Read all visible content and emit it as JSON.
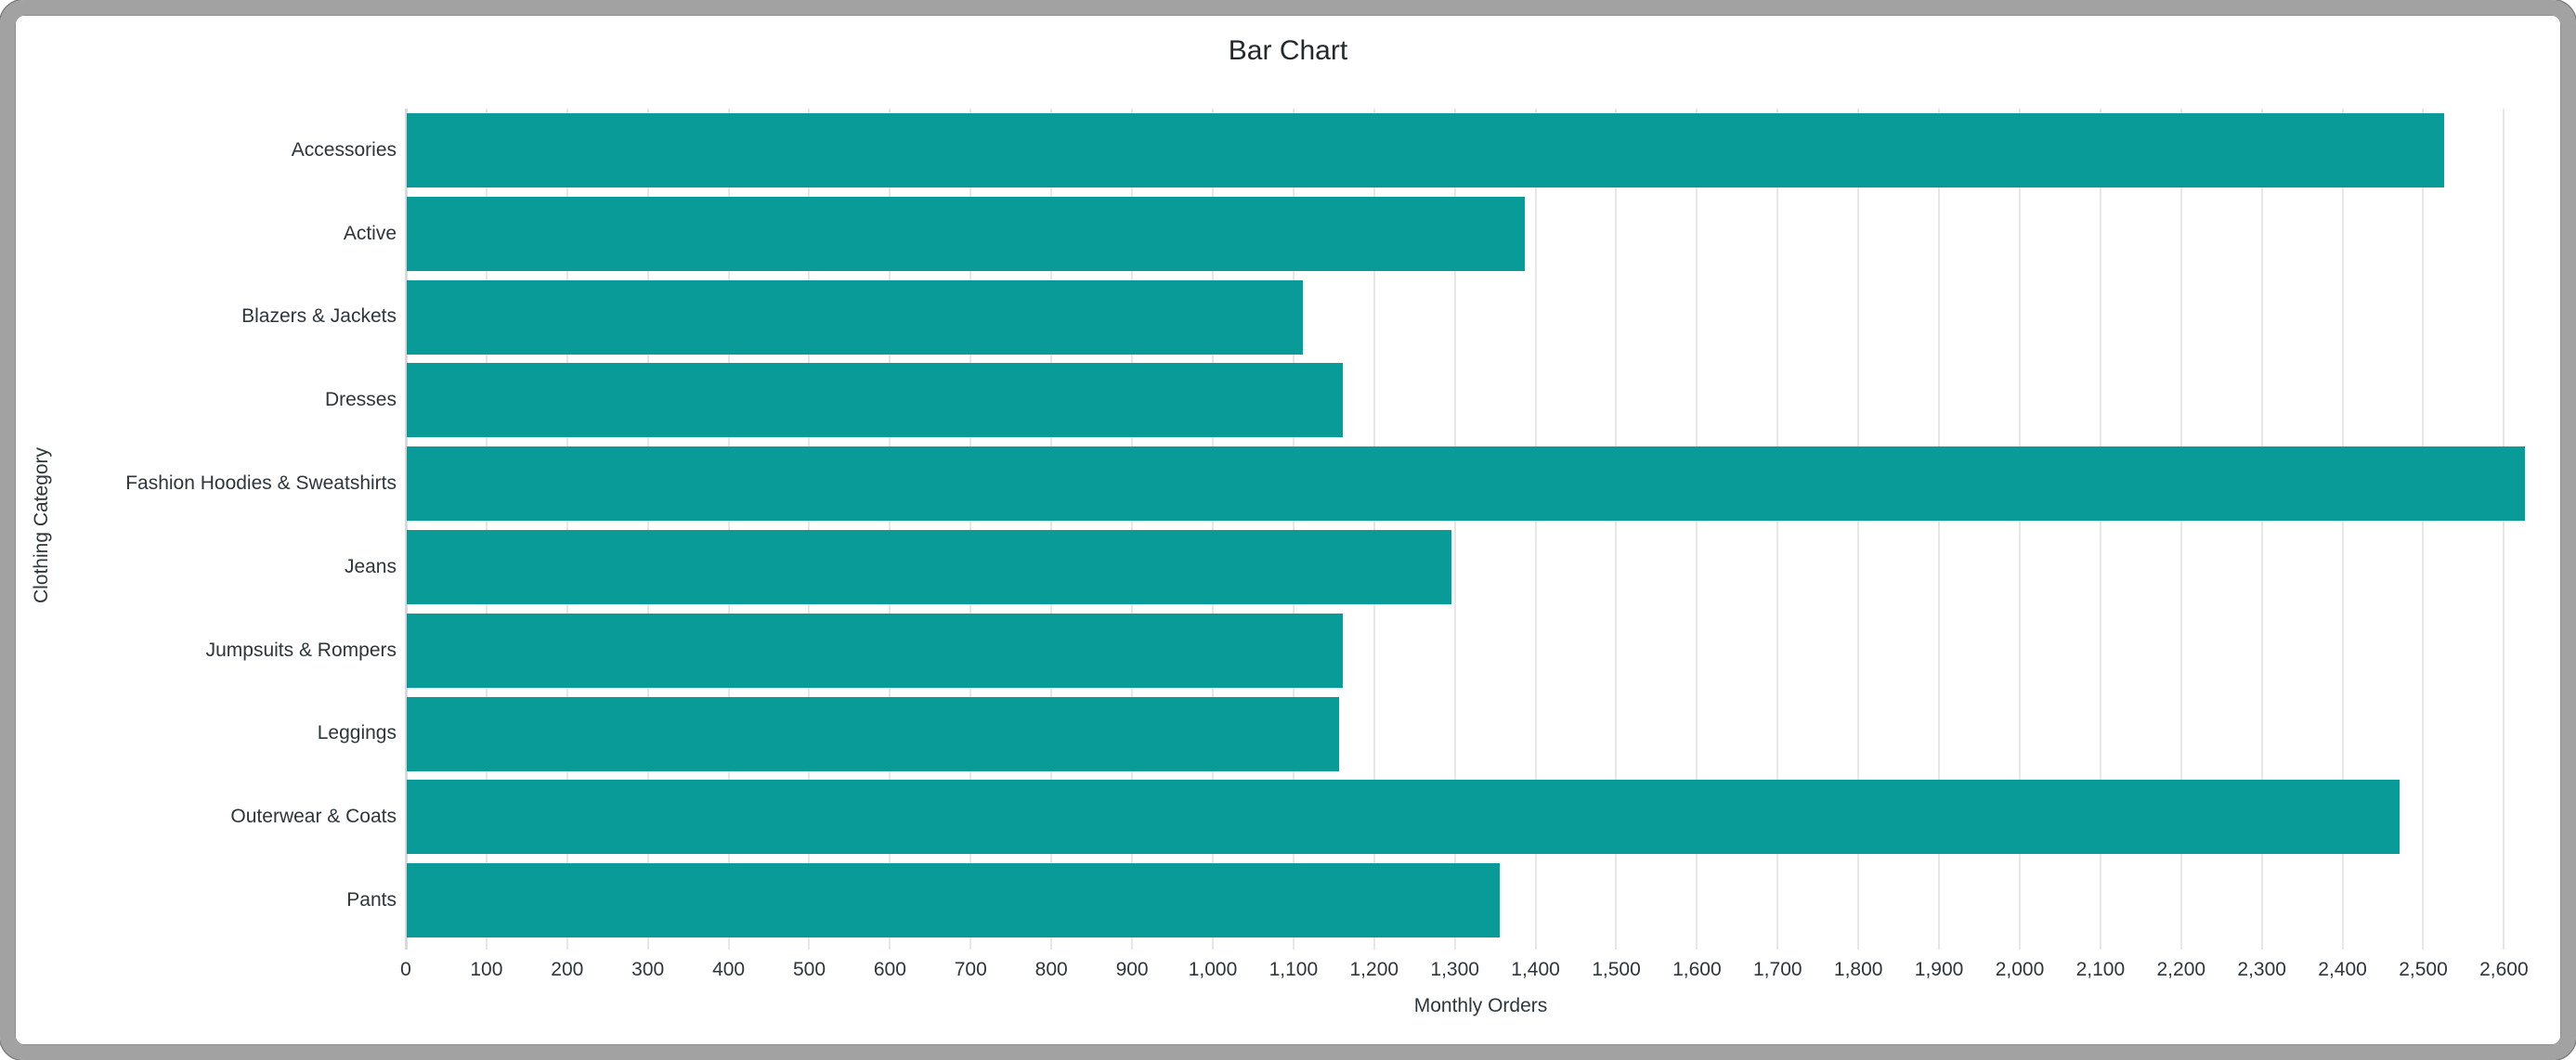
{
  "window": {
    "frame_color": "#a2a2a2",
    "background": "#ffffff"
  },
  "chart_data": {
    "type": "bar",
    "orientation": "horizontal",
    "title": "Bar Chart",
    "xlabel": "Monthly Orders",
    "ylabel": "Clothing Category",
    "categories": [
      "Accessories",
      "Active",
      "Blazers & Jackets",
      "Dresses",
      "Fashion Hoodies & Sweatshirts",
      "Jeans",
      "Jumpsuits & Rompers",
      "Leggings",
      "Outerwear & Coats",
      "Pants"
    ],
    "values": [
      2525,
      1385,
      1110,
      1160,
      2625,
      1295,
      1160,
      1155,
      2470,
      1355
    ],
    "xlim": [
      0,
      2664
    ],
    "xtick_labels": [
      "0",
      "100",
      "200",
      "300",
      "400",
      "500",
      "600",
      "700",
      "800",
      "900",
      "1,000",
      "1,100",
      "1,200",
      "1,300",
      "1,400",
      "1,500",
      "1,600",
      "1,700",
      "1,800",
      "1,900",
      "2,000",
      "2,100",
      "2,200",
      "2,300",
      "2,400",
      "2,500",
      "2,600"
    ],
    "grid": "vertical",
    "legend": "none",
    "bar_color": "#099b97",
    "gridline_color": "#e7e7e7",
    "zeroline_color": "#d4dbdf",
    "text_color": "#2e363c",
    "title_color": "#24292e"
  }
}
